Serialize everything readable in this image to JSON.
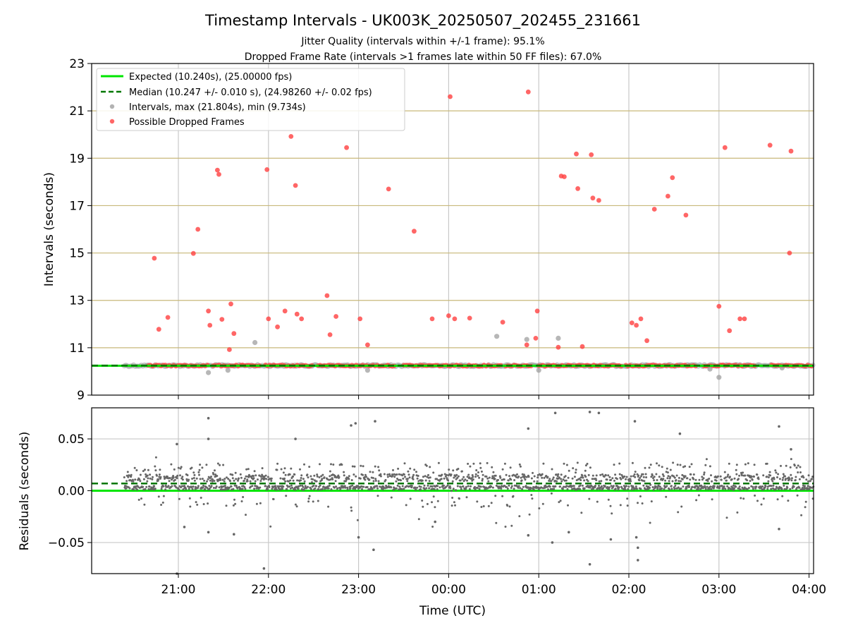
{
  "chart_data": {
    "type": "scatter",
    "title": "Timestamp Intervals - UK003K_20250507_202455_231661",
    "subtitle_1": "Jitter Quality (intervals within +/-1 frame): 95.1%",
    "subtitle_2": "Dropped Frame Rate (intervals >1 frames late within 50 FF files): 67.0%",
    "xlabel": "Time (UTC)",
    "x_ticks": [
      "21:00",
      "22:00",
      "23:00",
      "00:00",
      "01:00",
      "02:00",
      "03:00",
      "04:00"
    ],
    "top_panel": {
      "ylabel": "Intervals (seconds)",
      "ylim": [
        9,
        23
      ],
      "y_ticks": [
        "9",
        "11",
        "13",
        "15",
        "17",
        "19",
        "21",
        "23"
      ],
      "expected_interval": 10.24,
      "median_interval": 10.247,
      "legend": {
        "placement": "upper-left",
        "expected": "Expected (10.240s), (25.00000 fps)",
        "median": "Median (10.247 +/- 0.010 s), (24.98260 +/- 0.02 fps)",
        "intervals": "Intervals, max (21.804s), min (9.734s)",
        "dropped": "Possible Dropped Frames"
      },
      "dropped_frames": [
        [
          "20:44",
          14.78
        ],
        [
          "20:47",
          11.78
        ],
        [
          "20:53",
          12.28
        ],
        [
          "21:10",
          14.98
        ],
        [
          "21:13",
          16.0
        ],
        [
          "21:20",
          12.55
        ],
        [
          "21:21",
          11.95
        ],
        [
          "21:26",
          18.5
        ],
        [
          "21:27",
          18.32
        ],
        [
          "21:29",
          12.2
        ],
        [
          "21:34",
          10.92
        ],
        [
          "21:35",
          12.85
        ],
        [
          "21:37",
          11.6
        ],
        [
          "21:59",
          18.52
        ],
        [
          "22:00",
          12.22
        ],
        [
          "22:06",
          11.88
        ],
        [
          "22:11",
          12.55
        ],
        [
          "22:15",
          19.92
        ],
        [
          "22:18",
          17.85
        ],
        [
          "22:19",
          12.42
        ],
        [
          "22:22",
          12.22
        ],
        [
          "22:39",
          13.2
        ],
        [
          "22:41",
          11.55
        ],
        [
          "22:45",
          12.32
        ],
        [
          "22:52",
          19.45
        ],
        [
          "23:01",
          12.22
        ],
        [
          "23:06",
          11.12
        ],
        [
          "23:20",
          17.7
        ],
        [
          "23:37",
          15.92
        ],
        [
          "23:49",
          12.22
        ],
        [
          "00:00",
          12.35
        ],
        [
          "00:01",
          21.6
        ],
        [
          "00:04",
          12.22
        ],
        [
          "00:14",
          12.25
        ],
        [
          "00:36",
          12.08
        ],
        [
          "00:52",
          11.12
        ],
        [
          "00:53",
          21.8
        ],
        [
          "00:58",
          11.4
        ],
        [
          "00:59",
          12.55
        ],
        [
          "01:13",
          11.02
        ],
        [
          "01:15",
          18.25
        ],
        [
          "01:17",
          18.22
        ],
        [
          "01:25",
          19.18
        ],
        [
          "01:26",
          17.72
        ],
        [
          "01:29",
          11.05
        ],
        [
          "01:35",
          19.15
        ],
        [
          "01:36",
          17.32
        ],
        [
          "01:40",
          17.22
        ],
        [
          "02:02",
          12.05
        ],
        [
          "02:05",
          11.95
        ],
        [
          "02:08",
          12.22
        ],
        [
          "02:12",
          11.3
        ],
        [
          "02:17",
          16.85
        ],
        [
          "02:26",
          17.4
        ],
        [
          "02:29",
          18.18
        ],
        [
          "02:38",
          16.6
        ],
        [
          "03:00",
          12.75
        ],
        [
          "03:04",
          19.45
        ],
        [
          "03:07",
          11.72
        ],
        [
          "03:14",
          12.22
        ],
        [
          "03:17",
          12.22
        ],
        [
          "03:34",
          19.55
        ],
        [
          "03:47",
          15.0
        ],
        [
          "03:48",
          19.3
        ]
      ],
      "gray_outliers": [
        [
          "21:20",
          9.95
        ],
        [
          "21:33",
          10.05
        ],
        [
          "21:51",
          11.22
        ],
        [
          "23:06",
          10.05
        ],
        [
          "00:32",
          11.48
        ],
        [
          "00:52",
          11.35
        ],
        [
          "01:00",
          10.05
        ],
        [
          "01:13",
          11.4
        ],
        [
          "02:54",
          10.1
        ],
        [
          "03:00",
          9.75
        ],
        [
          "03:42",
          10.15
        ]
      ],
      "band_start": "20:24",
      "band_end": "04:03"
    },
    "bottom_panel": {
      "ylabel": "Residuals (seconds)",
      "ylim": [
        -0.08,
        0.08
      ],
      "y_ticks": [
        "0.05",
        "0.00",
        "−0.05"
      ],
      "y_tick_values": [
        0.05,
        0.0,
        -0.05
      ],
      "median_residual": 0.007,
      "expected_residual": 0.0,
      "residual_outliers": [
        [
          "20:59",
          0.045
        ],
        [
          "20:59",
          -0.08
        ],
        [
          "21:04",
          -0.035
        ],
        [
          "21:20",
          0.07
        ],
        [
          "21:20",
          0.05
        ],
        [
          "21:20",
          -0.04
        ],
        [
          "21:37",
          -0.042
        ],
        [
          "21:57",
          -0.075
        ],
        [
          "22:18",
          0.05
        ],
        [
          "22:55",
          0.063
        ],
        [
          "22:58",
          0.065
        ],
        [
          "23:00",
          -0.045
        ],
        [
          "23:10",
          -0.057
        ],
        [
          "23:11",
          0.067
        ],
        [
          "23:51",
          -0.03
        ],
        [
          "00:53",
          0.06
        ],
        [
          "00:53",
          -0.043
        ],
        [
          "01:09",
          -0.05
        ],
        [
          "01:11",
          0.075
        ],
        [
          "01:20",
          -0.04
        ],
        [
          "01:34",
          0.076
        ],
        [
          "01:34",
          -0.071
        ],
        [
          "01:40",
          0.075
        ],
        [
          "01:48",
          -0.047
        ],
        [
          "02:04",
          0.067
        ],
        [
          "02:05",
          -0.045
        ],
        [
          "02:06",
          -0.067
        ],
        [
          "02:06",
          -0.055
        ],
        [
          "02:34",
          0.055
        ],
        [
          "03:40",
          0.062
        ],
        [
          "03:40",
          -0.037
        ],
        [
          "03:48",
          0.04
        ]
      ]
    },
    "colors": {
      "expected_line": "#00e600",
      "median_line": "#007700",
      "dropped": "#ff4040",
      "intervals": "#999999",
      "residuals": "#666666",
      "hgrid_top": "#c8b87a",
      "grid": "#c8c8c8"
    }
  }
}
